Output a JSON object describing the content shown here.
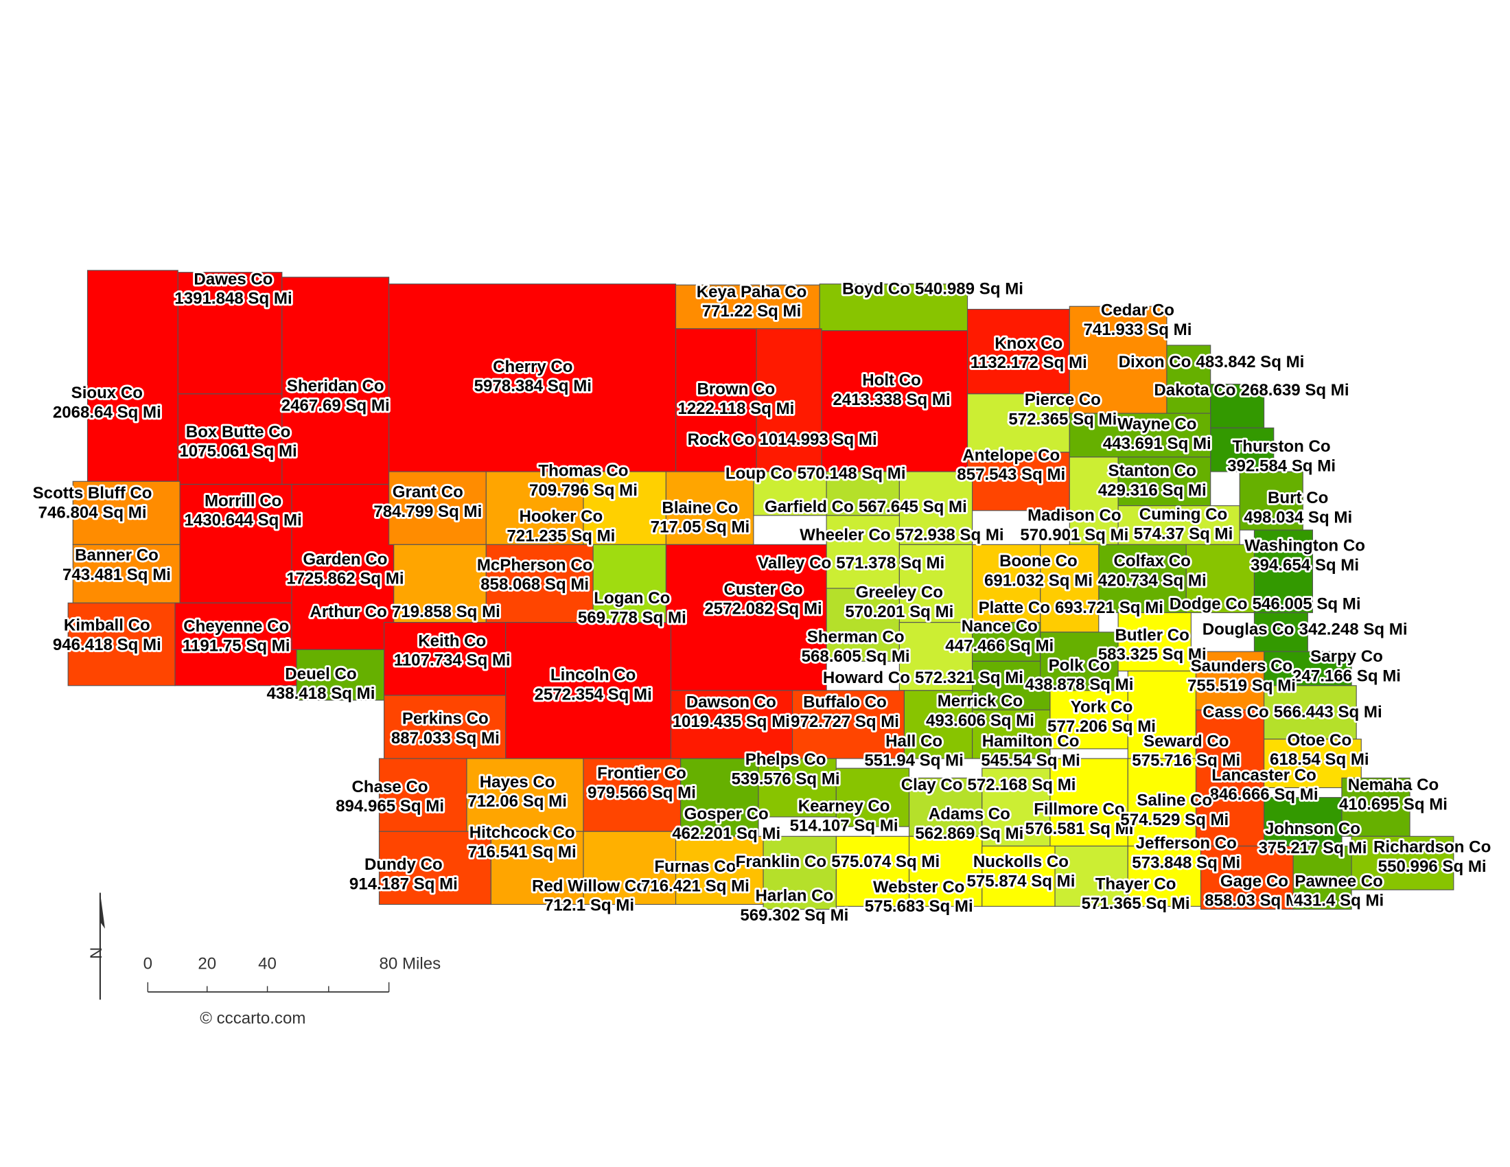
{
  "counties": [
    {
      "name": "Sioux Co",
      "area": "2068.64 Sq Mi",
      "color": "#ff0000"
    },
    {
      "name": "Dawes Co",
      "area": "1391.848 Sq Mi",
      "color": "#ff0000"
    },
    {
      "name": "Box Butte Co",
      "area": "1075.061 Sq Mi",
      "color": "#ff0000"
    },
    {
      "name": "Sheridan Co",
      "area": "2467.69 Sq Mi",
      "color": "#ff0000"
    },
    {
      "name": "Scotts Bluff Co",
      "area": "746.804 Sq Mi",
      "color": "#ff8c00"
    },
    {
      "name": "Banner Co",
      "area": "743.481 Sq Mi",
      "color": "#ff8c00"
    },
    {
      "name": "Kimball Co",
      "area": "946.418 Sq Mi",
      "color": "#ff4500"
    },
    {
      "name": "Morrill Co",
      "area": "1430.644 Sq Mi",
      "color": "#ff0000"
    },
    {
      "name": "Cheyenne Co",
      "area": "1191.75 Sq Mi",
      "color": "#ff0000"
    },
    {
      "name": "Garden Co",
      "area": "1725.862 Sq Mi",
      "color": "#ff0000"
    },
    {
      "name": "Deuel Co",
      "area": "438.418 Sq Mi",
      "color": "#66b000"
    },
    {
      "name": "Cherry Co",
      "area": "5978.384 Sq Mi",
      "color": "#ff0000"
    },
    {
      "name": "Keya Paha Co",
      "area": "771.22 Sq Mi",
      "color": "#ff8c00"
    },
    {
      "name": "Boyd Co",
      "area": "540.989 Sq Mi",
      "color": "#88c400"
    },
    {
      "name": "Brown Co",
      "area": "1222.118 Sq Mi",
      "color": "#ff0000"
    },
    {
      "name": "Rock Co",
      "area": "1014.993 Sq Mi",
      "color": "#ff1a00"
    },
    {
      "name": "Holt Co",
      "area": "2413.338 Sq Mi",
      "color": "#ff0000"
    },
    {
      "name": "Knox Co",
      "area": "1132.172 Sq Mi",
      "color": "#ff1a00"
    },
    {
      "name": "Cedar Co",
      "area": "741.933 Sq Mi",
      "color": "#ff8c00"
    },
    {
      "name": "Dixon Co",
      "area": "483.842 Sq Mi",
      "color": "#66b000"
    },
    {
      "name": "Dakota Co",
      "area": "268.639 Sq Mi",
      "color": "#339900"
    },
    {
      "name": "Thurston Co",
      "area": "392.584 Sq Mi",
      "color": "#339900"
    },
    {
      "name": "Pierce Co",
      "area": "572.365 Sq Mi",
      "color": "#ccee33"
    },
    {
      "name": "Antelope Co",
      "area": "857.543 Sq Mi",
      "color": "#ff4500"
    },
    {
      "name": "Wayne Co",
      "area": "443.691 Sq Mi",
      "color": "#66b000"
    },
    {
      "name": "Loup Co",
      "area": "570.148 Sq Mi",
      "color": "#ccee33"
    },
    {
      "name": "Garfield Co",
      "area": "567.645 Sq Mi",
      "color": "#b5e02a"
    },
    {
      "name": "Wheeler Co",
      "area": "572.938 Sq Mi",
      "color": "#ccee33"
    },
    {
      "name": "Grant Co",
      "area": "784.799 Sq Mi",
      "color": "#ff8c00"
    },
    {
      "name": "Hooker Co",
      "area": "721.235 Sq Mi",
      "color": "#ffa500"
    },
    {
      "name": "Thomas Co",
      "area": "709.796 Sq Mi",
      "color": "#ffd000"
    },
    {
      "name": "Blaine Co",
      "area": "717.05 Sq Mi",
      "color": "#ffa500"
    },
    {
      "name": "Arthur Co",
      "area": "719.858 Sq Mi",
      "color": "#ffa500"
    },
    {
      "name": "McPherson Co",
      "area": "858.068 Sq Mi",
      "color": "#ff4500"
    },
    {
      "name": "Logan Co",
      "area": "569.778 Sq Mi",
      "color": "#a0dc10"
    },
    {
      "name": "Custer Co",
      "area": "2572.082 Sq Mi",
      "color": "#ff0000"
    },
    {
      "name": "Valley Co",
      "area": "571.378 Sq Mi",
      "color": "#ccee33"
    },
    {
      "name": "Greeley Co",
      "area": "570.201 Sq Mi",
      "color": "#ccee33"
    },
    {
      "name": "Madison Co",
      "area": "570.901 Sq Mi",
      "color": "#ccee33"
    },
    {
      "name": "Stanton Co",
      "area": "429.316 Sq Mi",
      "color": "#66b000"
    },
    {
      "name": "Cuming Co",
      "area": "574.37 Sq Mi",
      "color": "#ccee33"
    },
    {
      "name": "Burt Co",
      "area": "498.034 Sq Mi",
      "color": "#66b000"
    },
    {
      "name": "Boone Co",
      "area": "691.032 Sq Mi",
      "color": "#ffcc00"
    },
    {
      "name": "Colfax Co",
      "area": "420.734 Sq Mi",
      "color": "#66b000"
    },
    {
      "name": "Platte Co",
      "area": "693.721 Sq Mi",
      "color": "#ffcc00"
    },
    {
      "name": "Dodge Co",
      "area": "546.005 Sq Mi",
      "color": "#88c400"
    },
    {
      "name": "Washington Co",
      "area": "394.654 Sq Mi",
      "color": "#339900"
    },
    {
      "name": "Douglas Co",
      "area": "342.248 Sq Mi",
      "color": "#339900"
    },
    {
      "name": "Sarpy Co",
      "area": "247.166 Sq Mi",
      "color": "#339900"
    },
    {
      "name": "Keith Co",
      "area": "1107.734 Sq Mi",
      "color": "#ff0000"
    },
    {
      "name": "Lincoln Co",
      "area": "2572.354 Sq Mi",
      "color": "#ff0000"
    },
    {
      "name": "Sherman Co",
      "area": "568.605 Sq Mi",
      "color": "#b5e02a"
    },
    {
      "name": "Howard Co",
      "area": "572.321 Sq Mi",
      "color": "#ccee33"
    },
    {
      "name": "Nance Co",
      "area": "447.466 Sq Mi",
      "color": "#66b000"
    },
    {
      "name": "Merrick Co",
      "area": "493.606 Sq Mi",
      "color": "#66b000"
    },
    {
      "name": "Polk Co",
      "area": "438.878 Sq Mi",
      "color": "#66b000"
    },
    {
      "name": "Butler Co",
      "area": "583.325 Sq Mi",
      "color": "#ffff00"
    },
    {
      "name": "Saunders Co",
      "area": "755.519 Sq Mi",
      "color": "#ff8c00"
    },
    {
      "name": "Perkins Co",
      "area": "887.033 Sq Mi",
      "color": "#ff4500"
    },
    {
      "name": "Dawson Co",
      "area": "1019.435 Sq Mi",
      "color": "#ff1a00"
    },
    {
      "name": "Buffalo Co",
      "area": "972.727 Sq Mi",
      "color": "#ff4500"
    },
    {
      "name": "Hall Co",
      "area": "551.94 Sq Mi",
      "color": "#88c400"
    },
    {
      "name": "Hamilton Co",
      "area": "545.54 Sq Mi",
      "color": "#88c400"
    },
    {
      "name": "York Co",
      "area": "577.206 Sq Mi",
      "color": "#ffff00"
    },
    {
      "name": "Seward Co",
      "area": "575.716 Sq Mi",
      "color": "#ffff00"
    },
    {
      "name": "Lancaster Co",
      "area": "846.666 Sq Mi",
      "color": "#ff4500"
    },
    {
      "name": "Cass Co",
      "area": "566.443 Sq Mi",
      "color": "#b5e02a"
    },
    {
      "name": "Otoe Co",
      "area": "618.54 Sq Mi",
      "color": "#ffdd00"
    },
    {
      "name": "Chase Co",
      "area": "894.965 Sq Mi",
      "color": "#ff4500"
    },
    {
      "name": "Hayes Co",
      "area": "712.06 Sq Mi",
      "color": "#ffa500"
    },
    {
      "name": "Frontier Co",
      "area": "979.566 Sq Mi",
      "color": "#ff4500"
    },
    {
      "name": "Gosper Co",
      "area": "462.201 Sq Mi",
      "color": "#66b000"
    },
    {
      "name": "Phelps Co",
      "area": "539.576 Sq Mi",
      "color": "#88c400"
    },
    {
      "name": "Kearney Co",
      "area": "514.107 Sq Mi",
      "color": "#88c400"
    },
    {
      "name": "Adams Co",
      "area": "562.869 Sq Mi",
      "color": "#b5e02a"
    },
    {
      "name": "Clay Co",
      "area": "572.168 Sq Mi",
      "color": "#ccee33"
    },
    {
      "name": "Fillmore Co",
      "area": "576.581 Sq Mi",
      "color": "#ffff00"
    },
    {
      "name": "Saline Co",
      "area": "574.529 Sq Mi",
      "color": "#ffff00"
    },
    {
      "name": "Johnson Co",
      "area": "375.217 Sq Mi",
      "color": "#339900"
    },
    {
      "name": "Nemaha Co",
      "area": "410.695 Sq Mi",
      "color": "#66b000"
    },
    {
      "name": "Dundy Co",
      "area": "914.187 Sq Mi",
      "color": "#ff4500"
    },
    {
      "name": "Hitchcock Co",
      "area": "716.541 Sq Mi",
      "color": "#ffa500"
    },
    {
      "name": "Red Willow Co",
      "area": "712.1 Sq Mi",
      "color": "#ffb000"
    },
    {
      "name": "Furnas Co",
      "area": "716.421 Sq Mi",
      "color": "#ffc000"
    },
    {
      "name": "Franklin Co",
      "area": "575.074 Sq Mi",
      "color": "#ffff00"
    },
    {
      "name": "Harlan Co",
      "area": "569.302 Sq Mi",
      "color": "#b5e02a"
    },
    {
      "name": "Webster Co",
      "area": "575.683 Sq Mi",
      "color": "#ffff00"
    },
    {
      "name": "Nuckolls Co",
      "area": "575.874 Sq Mi",
      "color": "#ffff00"
    },
    {
      "name": "Thayer Co",
      "area": "571.365 Sq Mi",
      "color": "#ccee33"
    },
    {
      "name": "Jefferson Co",
      "area": "573.848 Sq Mi",
      "color": "#ffff00"
    },
    {
      "name": "Gage Co",
      "area": "858.03 Sq Mi",
      "color": "#ff4500"
    },
    {
      "name": "Pawnee Co",
      "area": "431.4 Sq Mi",
      "color": "#66b000"
    },
    {
      "name": "Richardson Co",
      "area": "550.996 Sq Mi",
      "color": "#88c400"
    }
  ],
  "scale_bar": {
    "labels": [
      "0",
      "20",
      "40",
      "80 Miles"
    ]
  },
  "north": "N",
  "credit": "© cccarto.com"
}
